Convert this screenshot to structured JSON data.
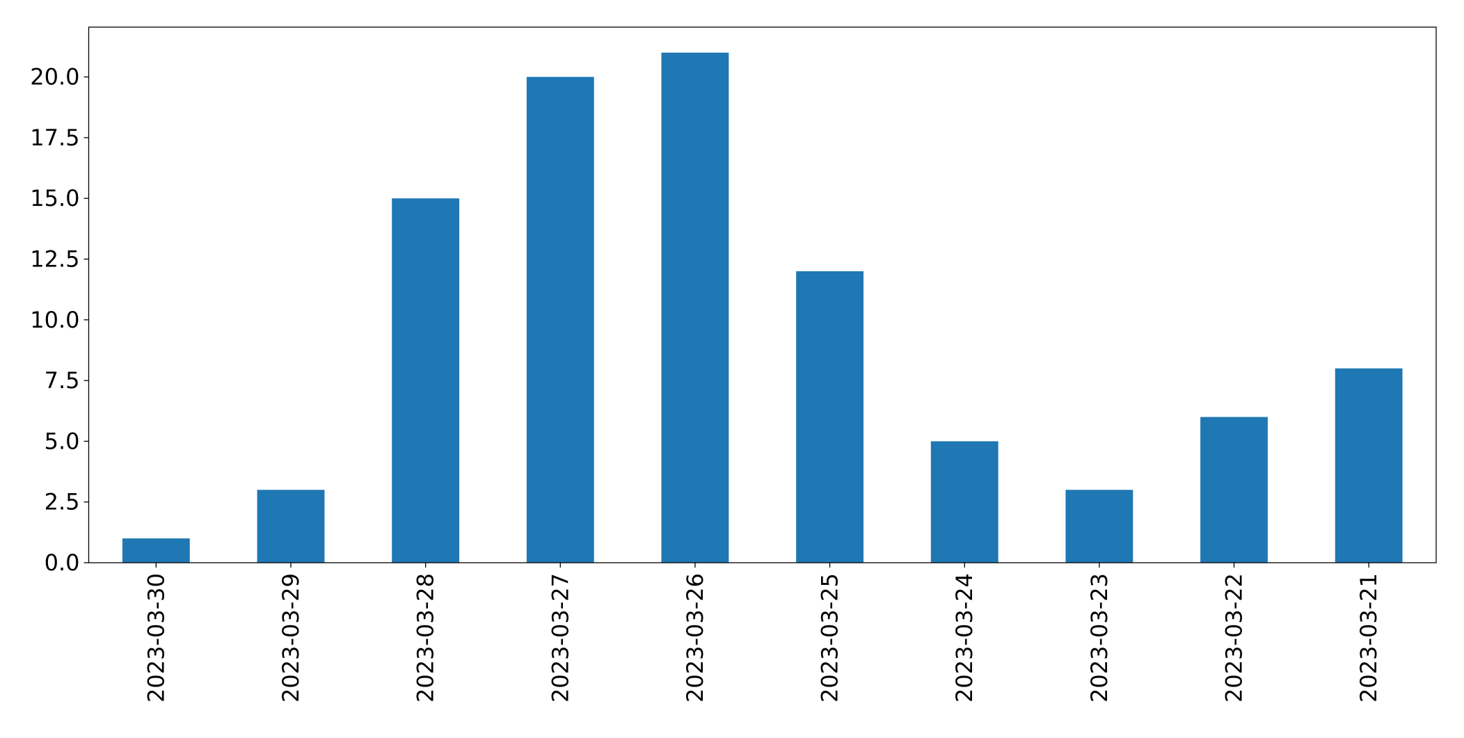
{
  "chart_data": {
    "type": "bar",
    "categories": [
      "2023-03-30",
      "2023-03-29",
      "2023-03-28",
      "2023-03-27",
      "2023-03-26",
      "2023-03-25",
      "2023-03-24",
      "2023-03-23",
      "2023-03-22",
      "2023-03-21"
    ],
    "values": [
      1,
      3,
      15,
      20,
      21,
      12,
      5,
      3,
      6,
      8
    ],
    "color": "#1f77b4",
    "ylim": [
      0,
      22.05
    ],
    "yticks": [
      {
        "value": 0,
        "label": "0.0"
      },
      2.5,
      {
        "value": 5,
        "label": "5.0"
      },
      7.5,
      {
        "value": 10,
        "label": "10.0"
      },
      12.5,
      {
        "value": 15,
        "label": "15.0"
      },
      17.5,
      {
        "value": 20,
        "label": "20.0"
      }
    ],
    "grid": false
  }
}
